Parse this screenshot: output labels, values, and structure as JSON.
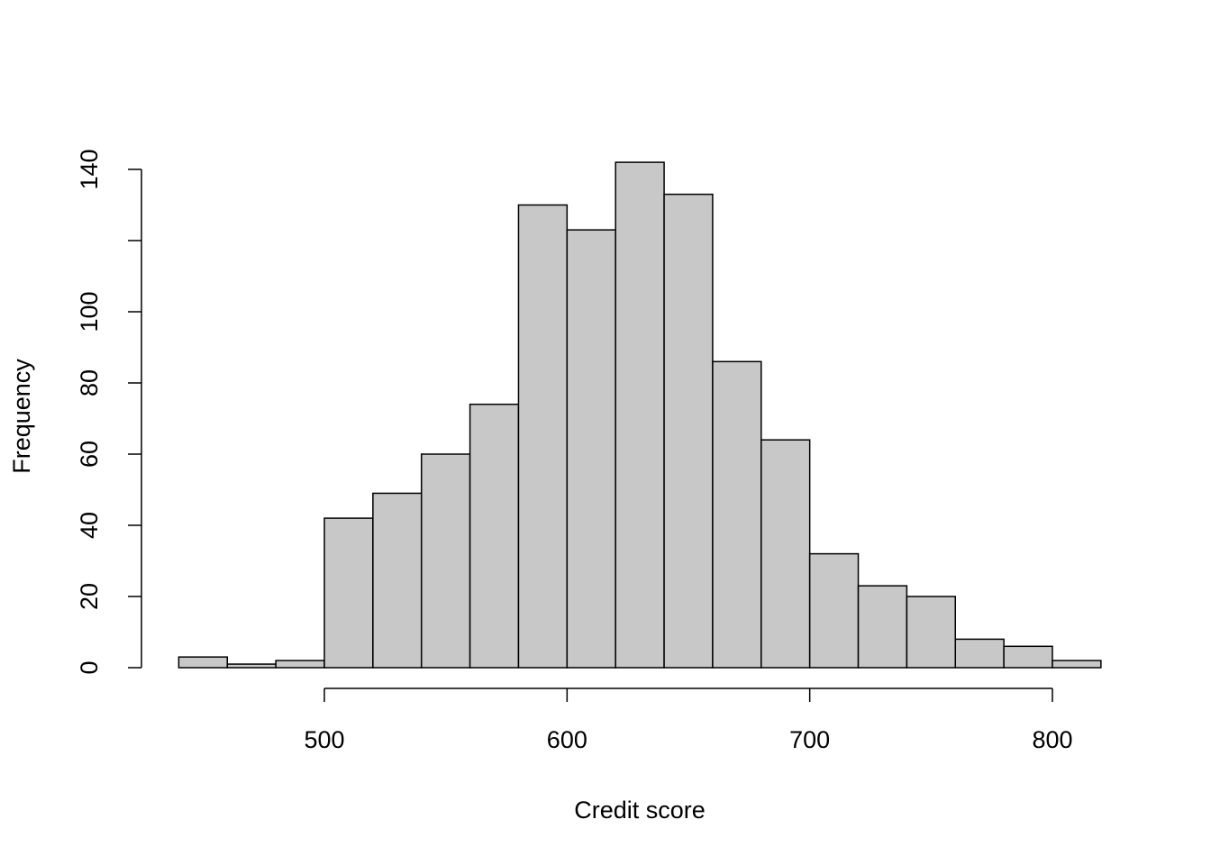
{
  "chart_data": {
    "type": "histogram",
    "xlabel": "Credit score",
    "ylabel": "Frequency",
    "bins": [
      440,
      460,
      480,
      500,
      520,
      540,
      560,
      580,
      600,
      620,
      640,
      660,
      680,
      700,
      720,
      740,
      760,
      780,
      800,
      820
    ],
    "values": [
      3,
      1,
      2,
      42,
      49,
      60,
      74,
      130,
      123,
      142,
      133,
      86,
      64,
      32,
      23,
      20,
      8,
      6,
      2
    ],
    "color": "#c8c8c8",
    "xlim": [
      500,
      800
    ],
    "xticks": [
      500,
      600,
      700,
      800
    ],
    "ylim": [
      0,
      140
    ],
    "yticks": [
      0,
      20,
      40,
      60,
      80,
      100,
      {
        "value": 120,
        "label": null
      },
      140
    ]
  }
}
